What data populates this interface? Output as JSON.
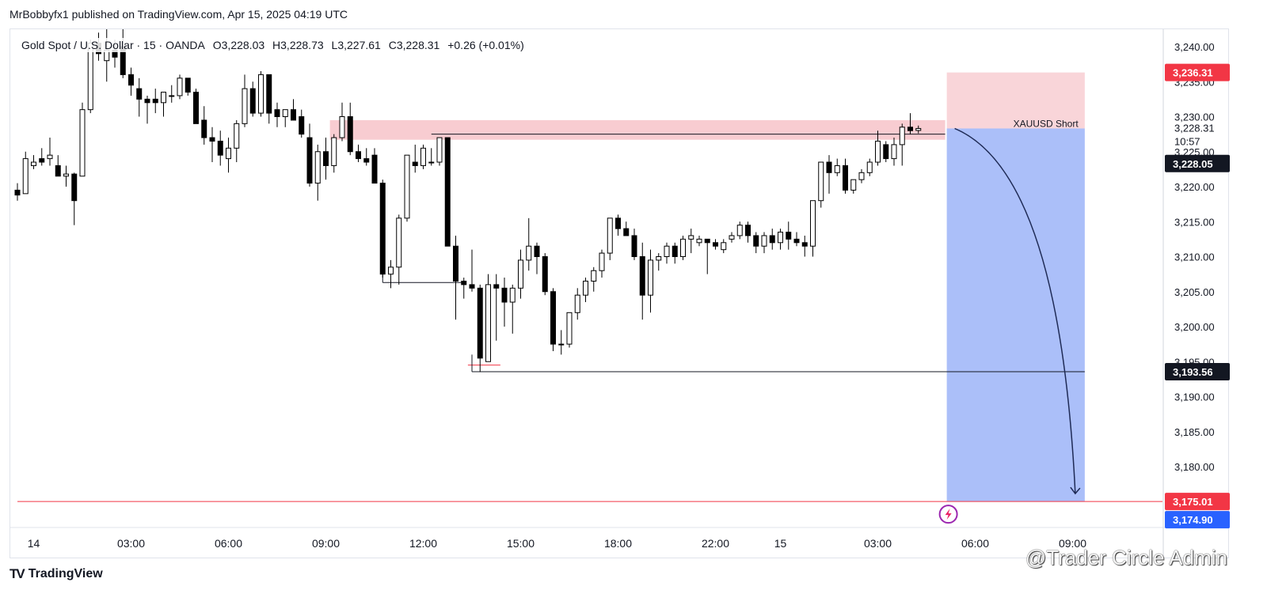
{
  "header": {
    "published": "MrBobbyfx1 published on TradingView.com, Apr 15, 2025 04:19 UTC"
  },
  "legend": {
    "symbol": "Gold Spot / U.S. Dollar · 15 · OANDA",
    "open": "O3,228.03",
    "high": "H3,228.73",
    "low": "L3,227.61",
    "close": "C3,228.31",
    "change": "+0.26 (+0.01%)"
  },
  "footer": {
    "logo_text": "TradingView",
    "watermark": "@Trader Circle Admin"
  },
  "chart_data": {
    "type": "candlestick",
    "symbol": "XAUUSD",
    "interval": "15",
    "ylim": [
      3170,
      3243
    ],
    "y_ticks": [
      "3,175.00",
      "3,180.00",
      "3,185.00",
      "3,190.00",
      "3,195.00",
      "3,200.00",
      "3,205.00",
      "3,210.00",
      "3,215.00",
      "3,220.00",
      "3,225.00",
      "3,230.00",
      "3,235.00",
      "3,240.00"
    ],
    "y_tick_values": [
      3175,
      3180,
      3185,
      3190,
      3195,
      3200,
      3205,
      3210,
      3215,
      3220,
      3225,
      3230,
      3235,
      3240
    ],
    "x_ticks": [
      {
        "label": "14",
        "bar": 2
      },
      {
        "label": "03:00",
        "bar": 14
      },
      {
        "label": "06:00",
        "bar": 26
      },
      {
        "label": "09:00",
        "bar": 38
      },
      {
        "label": "12:00",
        "bar": 50
      },
      {
        "label": "15:00",
        "bar": 62
      },
      {
        "label": "18:00",
        "bar": 74
      },
      {
        "label": "22:00",
        "bar": 86
      },
      {
        "label": "15",
        "bar": 94
      },
      {
        "label": "03:00",
        "bar": 106
      },
      {
        "label": "06:00",
        "bar": 118
      },
      {
        "label": "09:00",
        "bar": 130
      }
    ],
    "candles": [
      [
        3219.5,
        3220.5,
        3218,
        3218.8
      ],
      [
        3219,
        3225,
        3219,
        3224
      ],
      [
        3223,
        3224.5,
        3222.5,
        3223.5
      ],
      [
        3224,
        3225.5,
        3223,
        3223.5
      ],
      [
        3224,
        3227,
        3223,
        3224.5
      ],
      [
        3223,
        3224.5,
        3221.5,
        3221.5
      ],
      [
        3221.5,
        3223,
        3220,
        3221.8
      ],
      [
        3221.8,
        3222,
        3214.5,
        3218
      ],
      [
        3221.5,
        3232,
        3221.5,
        3231
      ],
      [
        3231,
        3241,
        3230.5,
        3240.5
      ],
      [
        3240.5,
        3242,
        3238,
        3239
      ],
      [
        3238,
        3242.5,
        3235,
        3239.5
      ],
      [
        3239.5,
        3241,
        3237,
        3238.5
      ],
      [
        3240,
        3242.5,
        3235.5,
        3236
      ],
      [
        3236,
        3237,
        3233,
        3234.5
      ],
      [
        3234,
        3235.5,
        3230,
        3232.5
      ],
      [
        3232.5,
        3233,
        3229,
        3232
      ],
      [
        3232.5,
        3234,
        3230.5,
        3232
      ],
      [
        3232,
        3233,
        3230,
        3233.5
      ],
      [
        3233,
        3234.5,
        3232,
        3233
      ],
      [
        3233,
        3236,
        3232.5,
        3235.5
      ],
      [
        3235.5,
        3235.5,
        3233,
        3233.5
      ],
      [
        3233.5,
        3234,
        3229,
        3229
      ],
      [
        3229.5,
        3231.5,
        3226,
        3227
      ],
      [
        3227,
        3228.5,
        3223.5,
        3226.5
      ],
      [
        3226.5,
        3228,
        3223,
        3224.5
      ],
      [
        3224,
        3227,
        3222,
        3225.5
      ],
      [
        3225.5,
        3229.5,
        3223.5,
        3229
      ],
      [
        3229,
        3236,
        3228.5,
        3234
      ],
      [
        3234,
        3235,
        3230,
        3230.5
      ],
      [
        3230.5,
        3236.5,
        3230,
        3236
      ],
      [
        3236,
        3236,
        3229,
        3230.5
      ],
      [
        3231,
        3232,
        3228.5,
        3230
      ],
      [
        3230,
        3231,
        3228.5,
        3231
      ],
      [
        3231,
        3232.5,
        3229.5,
        3229.5
      ],
      [
        3230,
        3231,
        3227,
        3227.5
      ],
      [
        3227,
        3229,
        3220,
        3220.5
      ],
      [
        3220.5,
        3226,
        3218,
        3225
      ],
      [
        3225,
        3227,
        3221,
        3223
      ],
      [
        3223,
        3227.5,
        3222,
        3227
      ],
      [
        3227,
        3232,
        3226.5,
        3230
      ],
      [
        3230,
        3232,
        3224.5,
        3225
      ],
      [
        3225,
        3226,
        3223.5,
        3224
      ],
      [
        3224,
        3225.5,
        3223,
        3223.5
      ],
      [
        3224.5,
        3225.5,
        3220.5,
        3220.5
      ],
      [
        3220.5,
        3221,
        3207,
        3207.5
      ],
      [
        3207.5,
        3209.5,
        3205.5,
        3208.5
      ],
      [
        3208.5,
        3216,
        3206,
        3215.5
      ],
      [
        3215.5,
        3224.5,
        3215,
        3224.5
      ],
      [
        3223.5,
        3226,
        3222,
        3223
      ],
      [
        3223,
        3226,
        3222.5,
        3225.5
      ],
      [
        3223.5,
        3225.5,
        3223,
        3223.5
      ],
      [
        3223.5,
        3227,
        3223,
        3227
      ],
      [
        3227,
        3227,
        3211.5,
        3211.5
      ],
      [
        3211.5,
        3213,
        3201,
        3206.5
      ],
      [
        3206.5,
        3207,
        3204,
        3206
      ],
      [
        3206,
        3211,
        3205,
        3205.5
      ],
      [
        3205.5,
        3206,
        3193.5,
        3195.5
      ],
      [
        3195,
        3207.5,
        3195,
        3206
      ],
      [
        3206,
        3207.5,
        3198,
        3205.5
      ],
      [
        3205.5,
        3207,
        3200,
        3203.5
      ],
      [
        3203.5,
        3206,
        3199,
        3205.5
      ],
      [
        3205.5,
        3211,
        3204,
        3209.5
      ],
      [
        3209.5,
        3215.5,
        3208,
        3211.5
      ],
      [
        3211.5,
        3212,
        3207.5,
        3210
      ],
      [
        3210,
        3210.5,
        3204.5,
        3205
      ],
      [
        3205,
        3205.5,
        3196.5,
        3197.5
      ],
      [
        3197.5,
        3199.5,
        3196,
        3197.5
      ],
      [
        3197.5,
        3202,
        3197,
        3202
      ],
      [
        3202,
        3205.5,
        3201,
        3204.5
      ],
      [
        3204.5,
        3207,
        3203.5,
        3206.5
      ],
      [
        3206.5,
        3208.5,
        3205,
        3208
      ],
      [
        3208,
        3211,
        3207,
        3210.5
      ],
      [
        3210.5,
        3215,
        3209.5,
        3215.5
      ],
      [
        3215.5,
        3216,
        3213,
        3214
      ],
      [
        3214,
        3215,
        3213,
        3213
      ],
      [
        3213,
        3214,
        3209.5,
        3210
      ],
      [
        3210,
        3212,
        3201,
        3204.5
      ],
      [
        3204.5,
        3211,
        3202,
        3209.5
      ],
      [
        3209.5,
        3210.5,
        3208,
        3210
      ],
      [
        3210,
        3212,
        3209,
        3211.5
      ],
      [
        3211.5,
        3212,
        3209,
        3210
      ],
      [
        3210,
        3213,
        3209.5,
        3212.5
      ],
      [
        3212.5,
        3214,
        3210.5,
        3213
      ],
      [
        3212,
        3213,
        3211.5,
        3212.5
      ],
      [
        3212.5,
        3212.5,
        3207.5,
        3212
      ],
      [
        3212,
        3212.5,
        3211,
        3211.5
      ],
      [
        3211,
        3212.5,
        3210.5,
        3212
      ],
      [
        3212.5,
        3213.5,
        3212,
        3213
      ],
      [
        3213,
        3215,
        3212.5,
        3214.5
      ],
      [
        3214.5,
        3215,
        3212,
        3213
      ],
      [
        3213,
        3213.5,
        3210.5,
        3211.5
      ],
      [
        3211.5,
        3213.5,
        3210.5,
        3213
      ],
      [
        3213,
        3214,
        3211,
        3212
      ],
      [
        3212,
        3214,
        3211,
        3213.5
      ],
      [
        3213.5,
        3215,
        3211,
        3212.5
      ],
      [
        3212.5,
        3213.5,
        3211.5,
        3212
      ],
      [
        3212,
        3213,
        3210,
        3211.5
      ],
      [
        3211.5,
        3218,
        3210,
        3218
      ],
      [
        3218,
        3223.5,
        3217,
        3223.5
      ],
      [
        3223.5,
        3224.5,
        3219,
        3222
      ],
      [
        3222,
        3224,
        3221.5,
        3223
      ],
      [
        3223,
        3224,
        3219,
        3219.5
      ],
      [
        3219.5,
        3221,
        3219,
        3221
      ],
      [
        3221,
        3222.5,
        3220.5,
        3222
      ],
      [
        3222,
        3224,
        3221.5,
        3223.5
      ],
      [
        3223.5,
        3228,
        3223,
        3226.5
      ],
      [
        3226,
        3226.5,
        3223.5,
        3224
      ],
      [
        3224,
        3227,
        3223,
        3226
      ],
      [
        3226,
        3229,
        3223,
        3228.5
      ],
      [
        3228.5,
        3230.5,
        3227.5,
        3228
      ],
      [
        3228.03,
        3228.73,
        3227.61,
        3228.31
      ]
    ],
    "price_labels": [
      {
        "value": 3236.31,
        "text": "3,236.31",
        "color": "#f23645"
      },
      {
        "value": 3228.31,
        "text": "3,228.31",
        "sub": "10:57"
      },
      {
        "value": 3228.05,
        "text": "3,228.05",
        "color": "#131722"
      },
      {
        "value": 3193.56,
        "text": "3,193.56",
        "color": "#131722"
      },
      {
        "value": 3175.01,
        "text": "3,175.01",
        "color": "#f23645"
      },
      {
        "value": 3174.9,
        "text": "3,174.90",
        "color": "#2962ff"
      }
    ],
    "position": {
      "label": "XAUUSD Short",
      "entry": 3228.31,
      "stop": 3236.31,
      "target": 3175.01,
      "start_bar": 114.5,
      "end_bar": 131.5,
      "stop_color": "#f7c7cc",
      "target_color": "#a6bcf9"
    },
    "zone": {
      "top": 3229.5,
      "bottom": 3226.7,
      "from_bar": 38.5,
      "to_bar": 114.3,
      "color": "#f7c7cc"
    },
    "lines": [
      {
        "value": 3227.5,
        "from_bar": 51,
        "to_bar": 114.3
      },
      {
        "value": 3206.3,
        "from_bar": 45,
        "to_bar": 55
      },
      {
        "value": 3193.56,
        "from_bar": 56,
        "to_bar": 131.5
      },
      {
        "value": 3194.5,
        "from_bar": 55.5,
        "to_bar": 59.5,
        "color": "#f23645"
      },
      {
        "value": 3175.01,
        "from_bar": 0,
        "to_bar": 142,
        "color": "#f23645"
      }
    ],
    "colors": {
      "up_body": "#ffffff",
      "down_body": "#000000",
      "wick": "#000000",
      "arrow": "#1e2a55"
    }
  }
}
